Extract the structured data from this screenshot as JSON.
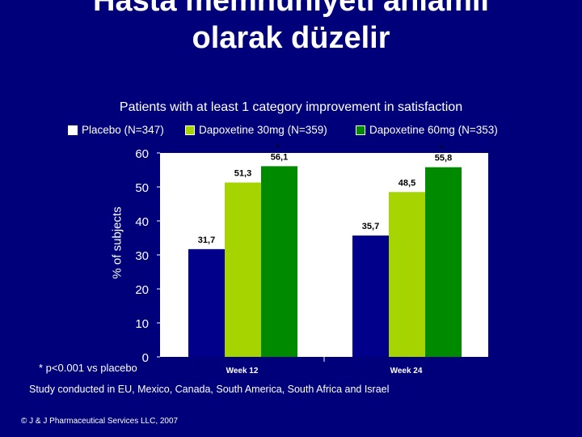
{
  "slide": {
    "title_line1": "Hasta memnuniyeti anlamlı",
    "title_line2": "olarak düzelir",
    "footnote": "* p<0.001 vs placebo",
    "study_note": "Study conducted in EU, Mexico, Canada, South America, South Africa and Israel",
    "copyright": "© J & J Pharmaceutical Services LLC, 2007"
  },
  "colors": {
    "background": "#00007a",
    "placebo": "#00008b",
    "dapox30": "#a6d400",
    "dapox60": "#008a00",
    "plot_area": "#ffffff"
  },
  "chart_data": {
    "type": "bar",
    "title": "Patients with at least 1 category improvement in satisfaction",
    "ylabel": "% of subjects",
    "xlabel": "",
    "ylim": [
      0,
      60
    ],
    "yticks": [
      0,
      10,
      20,
      30,
      40,
      50,
      60
    ],
    "categories": [
      "Week 12",
      "Week 24"
    ],
    "series": [
      {
        "name": "Placebo (N=347)",
        "values": [
          31.7,
          35.7
        ],
        "labels": [
          "31,7",
          "35,7"
        ],
        "color": "#00008b"
      },
      {
        "name": "Dapoxetine 30mg (N=359)",
        "values": [
          51.3,
          48.5
        ],
        "labels": [
          "51,3",
          "48,5"
        ],
        "color": "#a6d400"
      },
      {
        "name": "Dapoxetine 60mg (N=353)",
        "values": [
          56.1,
          55.8
        ],
        "labels": [
          "56,1",
          "55,8"
        ],
        "color": "#008a00",
        "significance": [
          "*",
          "*"
        ]
      }
    ],
    "grid": false,
    "legend_position": "top"
  }
}
